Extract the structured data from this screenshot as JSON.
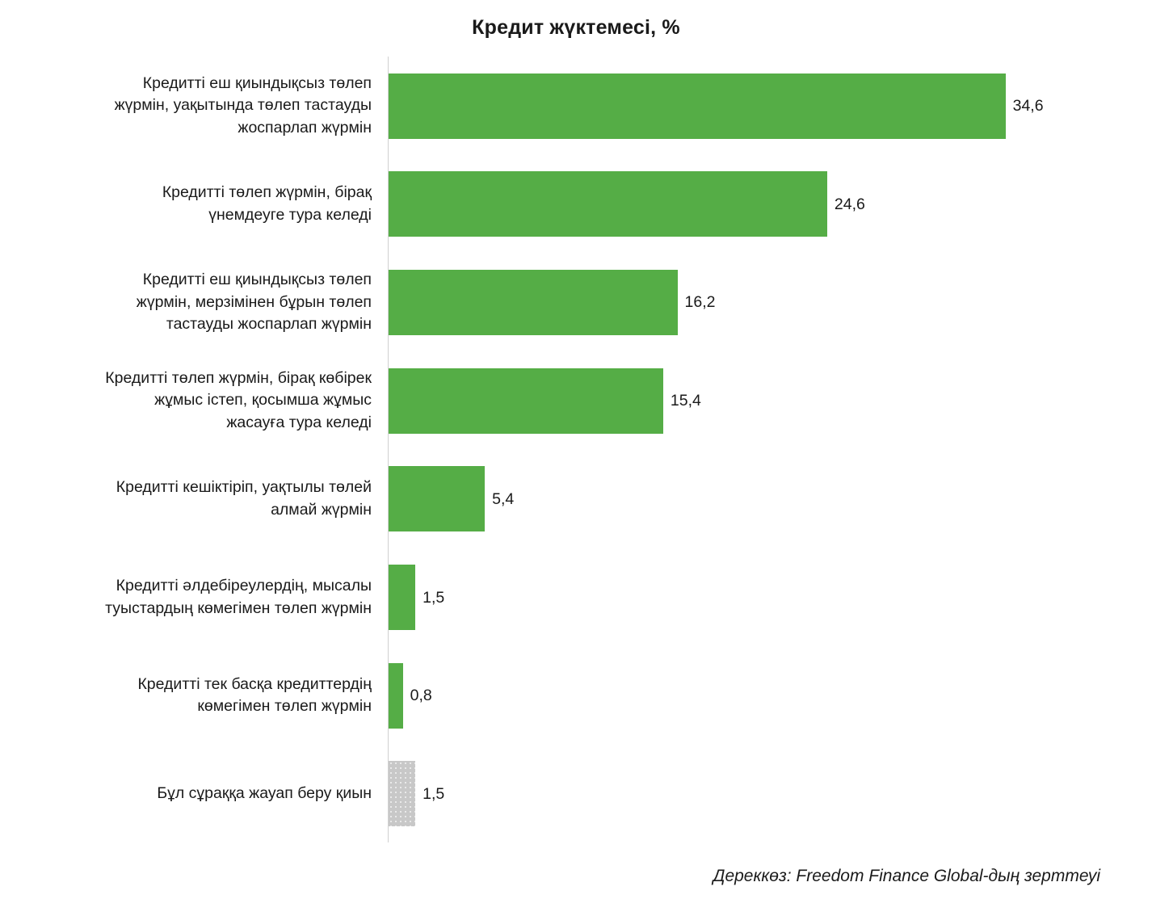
{
  "chart_data": {
    "type": "bar",
    "orientation": "horizontal",
    "title": "Кредит жүктемесі, %",
    "xlabel": "",
    "ylabel": "",
    "xlim": [
      0,
      35.5
    ],
    "grid": false,
    "categories": [
      "Кредитті еш қиындықсыз төлеп\nжүрмін, уақытында төлеп тастауды\nжоспарлап жүрмін",
      "Кредитті төлеп жүрмін, бірақ\nүнемдеуге тура келеді",
      "Кредитті еш қиындықсыз төлеп\nжүрмін, мерзімінен бұрын төлеп\nтастауды жоспарлап жүрмін",
      "Кредитті төлеп жүрмін, бірақ көбірек\nжұмыс істеп, қосымша жұмыс\nжасауға тура келеді",
      "Кредитті кешіктіріп, уақтылы төлей\nалмай жүрмін",
      "Кредитті әлдебіреулердің, мысалы\nтуыстардың көмегімен төлеп жүрмін",
      "Кредитті тек басқа кредиттердің\nкөмегімен төлеп жүрмін",
      "Бұл сұраққа жауап беру қиын"
    ],
    "values": [
      34.6,
      24.6,
      16.2,
      15.4,
      5.4,
      1.5,
      0.8,
      1.5
    ],
    "value_labels": [
      "34,6",
      "24,6",
      "16,2",
      "15,4",
      "5,4",
      "1,5",
      "0,8",
      "1,5"
    ],
    "bar_styles": [
      "solid",
      "solid",
      "solid",
      "solid",
      "solid",
      "solid",
      "solid",
      "dotted"
    ],
    "colors": {
      "main": "#55ad46",
      "other": "#c8c8c8"
    }
  },
  "source": "Дереккөз: Freedom Finance Global-дың зерттеуі"
}
